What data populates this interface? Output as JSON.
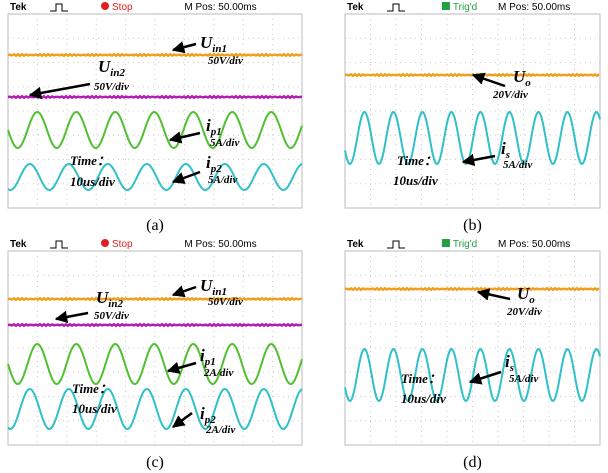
{
  "panels": [
    {
      "header": {
        "brand": "Tek",
        "status": "Stop",
        "mpos": "M Pos: 50.00ms"
      },
      "labels": [
        {
          "main": "U",
          "sub": "in1",
          "scale": "50V/div"
        },
        {
          "main": "U",
          "sub": "in2",
          "scale": "50V/div"
        },
        {
          "main": "i",
          "sub": "p1",
          "scale": "5A/div"
        },
        {
          "main": "i",
          "sub": "p2",
          "scale": "5A/div"
        }
      ],
      "time": [
        "Time：",
        "10us/div"
      ],
      "caption": "(a)"
    },
    {
      "header": {
        "brand": "Tek",
        "status": "Trig'd",
        "mpos": "M Pos: 50.00ms"
      },
      "labels": [
        {
          "main": "U",
          "sub": "o",
          "scale": "20V/div"
        },
        {
          "main": "i",
          "sub": "s",
          "scale": "5A/div"
        }
      ],
      "time": [
        "Time：",
        "10us/div"
      ],
      "caption": "(b)"
    },
    {
      "header": {
        "brand": "Tek",
        "status": "Stop",
        "mpos": "M Pos: 50.00ms"
      },
      "labels": [
        {
          "main": "U",
          "sub": "in1",
          "scale": "50V/div"
        },
        {
          "main": "U",
          "sub": "in2",
          "scale": "50V/div"
        },
        {
          "main": "i",
          "sub": "p1",
          "scale": "2A/div"
        },
        {
          "main": "i",
          "sub": "p2",
          "scale": "2A/div"
        }
      ],
      "time": [
        "Time：",
        "10us/div"
      ],
      "caption": "(c)"
    },
    {
      "header": {
        "brand": "Tek",
        "status": "Trig'd",
        "mpos": "M Pos: 50.00ms"
      },
      "labels": [
        {
          "main": "U",
          "sub": "o",
          "scale": "20V/div"
        },
        {
          "main": "i",
          "sub": "s",
          "scale": "5A/div"
        }
      ],
      "time": [
        "Time：",
        "10us/div"
      ],
      "caption": "(d)"
    }
  ]
}
